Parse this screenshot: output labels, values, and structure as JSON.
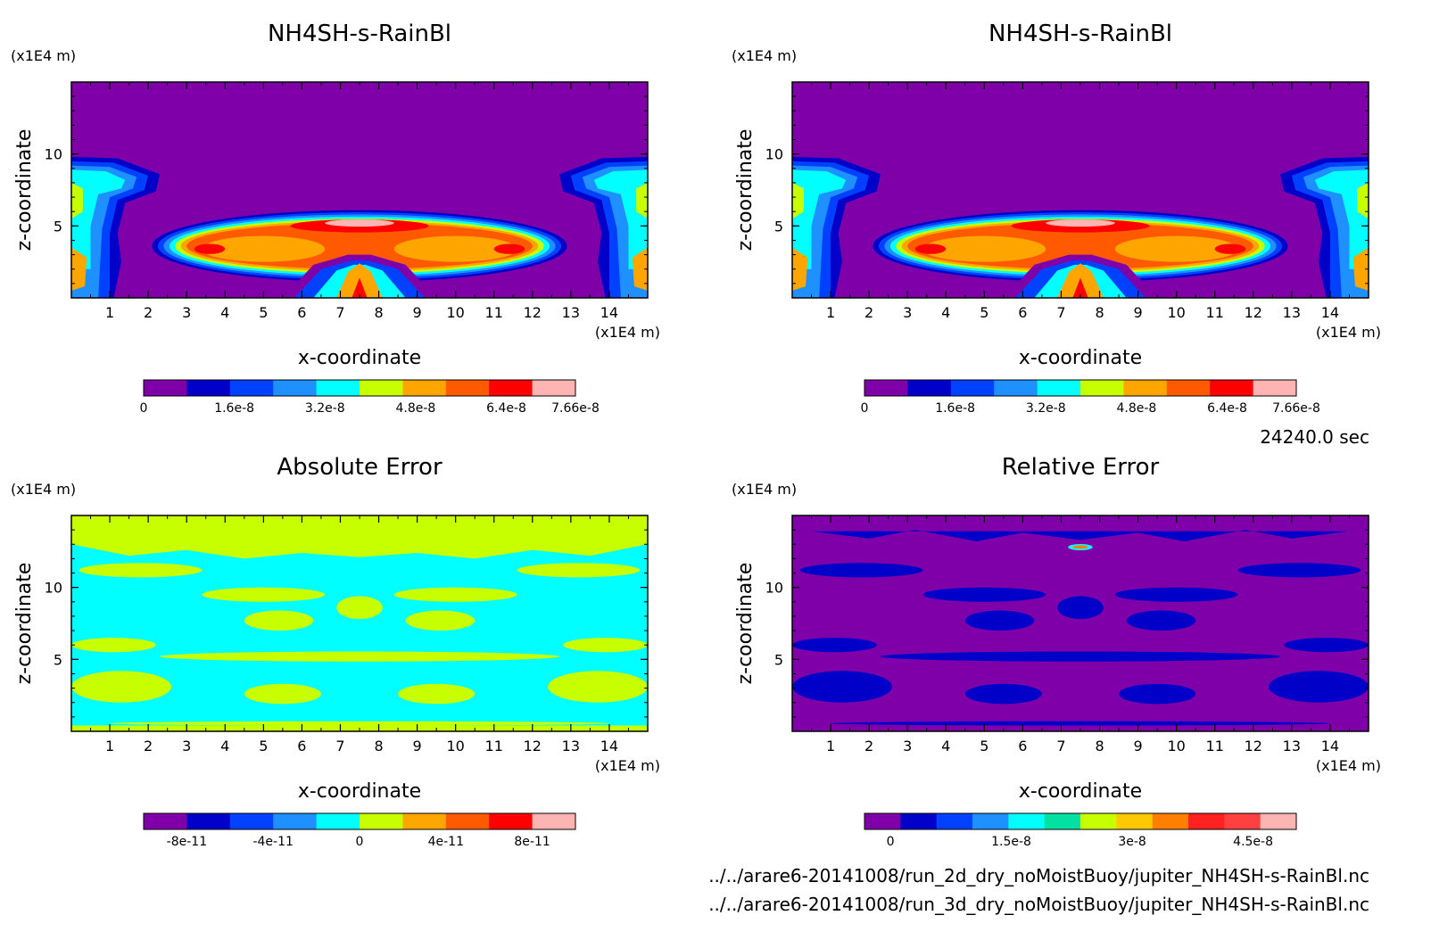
{
  "time_label": "24240.0 sec",
  "files": [
    "../../arare6-20141008/run_2d_dry_noMoistBuoy/jupiter_NH4SH-s-RainBl.nc",
    "../../arare6-20141008/run_3d_dry_noMoistBuoy/jupiter_NH4SH-s-RainBl.nc"
  ],
  "chart_data": [
    {
      "type": "heatmap",
      "title": "NH4SH-s-RainBl",
      "xlabel": "x-coordinate",
      "ylabel": "z-coordinate",
      "x_unit": "(x1E4 m)",
      "y_unit": "(x1E4 m)",
      "xlim": [
        0,
        15
      ],
      "ylim": [
        0,
        15
      ],
      "xticks": [
        "1",
        "2",
        "3",
        "4",
        "5",
        "6",
        "7",
        "8",
        "9",
        "10",
        "11",
        "12",
        "13",
        "14"
      ],
      "yticks": [
        "5",
        "10"
      ],
      "colorbar": {
        "colors": [
          "#7f00a9",
          "#0000c8",
          "#0040ff",
          "#1e90ff",
          "#00ffff",
          "#c8ff00",
          "#ffa500",
          "#ff5a00",
          "#ff0000",
          "#ffb4b4"
        ],
        "labels": [
          "0",
          "1.6e-8",
          "3.2e-8",
          "4.8e-8",
          "6.4e-8",
          "7.66e-8"
        ]
      }
    },
    {
      "type": "heatmap",
      "title": "NH4SH-s-RainBl",
      "xlabel": "x-coordinate",
      "ylabel": "z-coordinate",
      "x_unit": "(x1E4 m)",
      "y_unit": "(x1E4 m)",
      "xlim": [
        0,
        15
      ],
      "ylim": [
        0,
        15
      ],
      "xticks": [
        "1",
        "2",
        "3",
        "4",
        "5",
        "6",
        "7",
        "8",
        "9",
        "10",
        "11",
        "12",
        "13",
        "14"
      ],
      "yticks": [
        "5",
        "10"
      ],
      "colorbar": {
        "colors": [
          "#7f00a9",
          "#0000c8",
          "#0040ff",
          "#1e90ff",
          "#00ffff",
          "#c8ff00",
          "#ffa500",
          "#ff5a00",
          "#ff0000",
          "#ffb4b4"
        ],
        "labels": [
          "0",
          "1.6e-8",
          "3.2e-8",
          "4.8e-8",
          "6.4e-8",
          "7.66e-8"
        ]
      }
    },
    {
      "type": "heatmap",
      "title": "Absolute Error",
      "xlabel": "x-coordinate",
      "ylabel": "z-coordinate",
      "x_unit": "(x1E4 m)",
      "y_unit": "(x1E4 m)",
      "xlim": [
        0,
        15
      ],
      "ylim": [
        0,
        15
      ],
      "xticks": [
        "1",
        "2",
        "3",
        "4",
        "5",
        "6",
        "7",
        "8",
        "9",
        "10",
        "11",
        "12",
        "13",
        "14"
      ],
      "yticks": [
        "5",
        "10"
      ],
      "colorbar": {
        "colors": [
          "#7f00a9",
          "#0000c8",
          "#0040ff",
          "#1e90ff",
          "#00ffff",
          "#c8ff00",
          "#ffa500",
          "#ff5a00",
          "#ff0000",
          "#ffb4b4"
        ],
        "labels": [
          "-8e-11",
          "-4e-11",
          "0",
          "4e-11",
          "8e-11"
        ]
      }
    },
    {
      "type": "heatmap",
      "title": "Relative Error",
      "xlabel": "x-coordinate",
      "ylabel": "z-coordinate",
      "x_unit": "(x1E4 m)",
      "y_unit": "(x1E4 m)",
      "xlim": [
        0,
        15
      ],
      "ylim": [
        0,
        15
      ],
      "xticks": [
        "1",
        "2",
        "3",
        "4",
        "5",
        "6",
        "7",
        "8",
        "9",
        "10",
        "11",
        "12",
        "13",
        "14"
      ],
      "yticks": [
        "5",
        "10"
      ],
      "colorbar": {
        "colors": [
          "#7f00a9",
          "#0000c8",
          "#0040ff",
          "#1e90ff",
          "#00ffff",
          "#00e0a0",
          "#c8ff00",
          "#ffc800",
          "#ff8000",
          "#ff2020",
          "#ff4040",
          "#ffb4b4"
        ],
        "labels": [
          "0",
          "1.5e-8",
          "3e-8",
          "4.5e-8"
        ]
      }
    }
  ]
}
